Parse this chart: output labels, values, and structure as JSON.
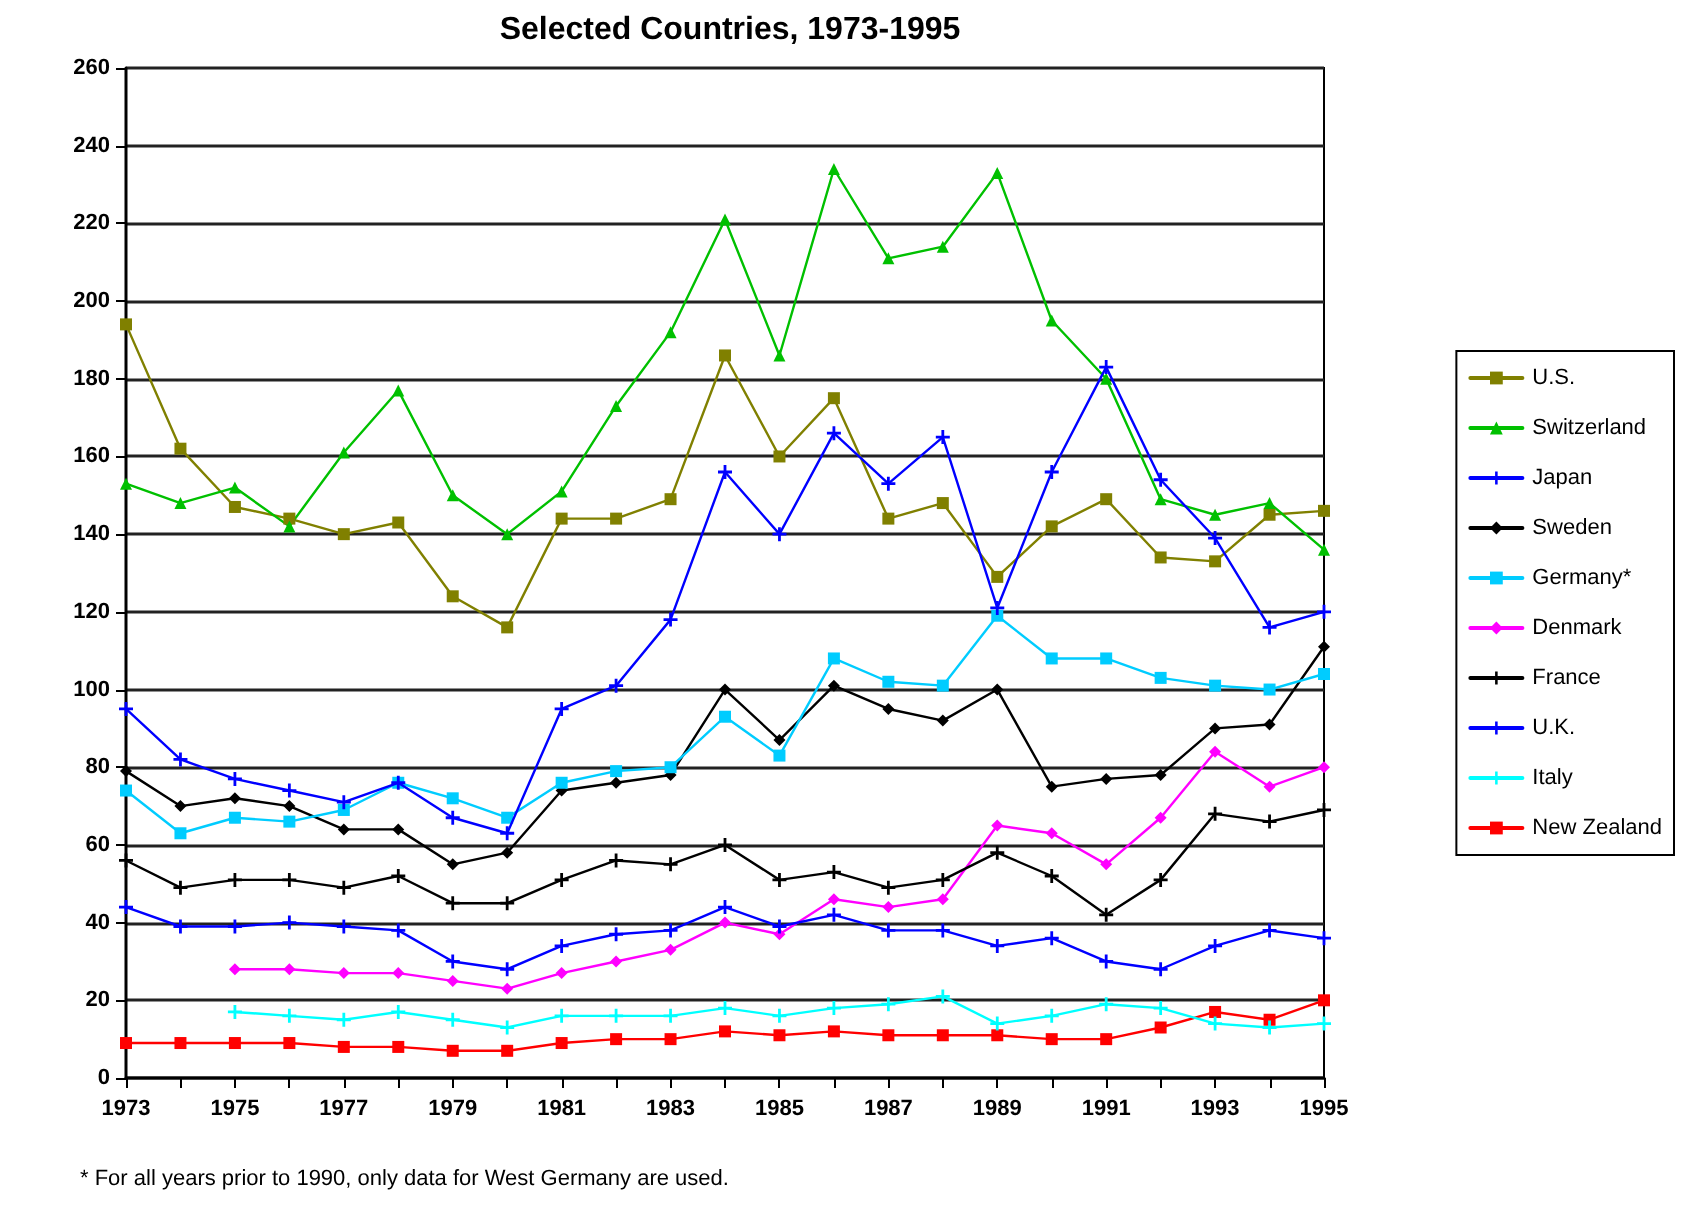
{
  "chart_data": {
    "type": "line",
    "title": "Selected Countries, 1973-1995",
    "categories": [
      "1973",
      null,
      "1975",
      null,
      "1977",
      null,
      "1979",
      null,
      "1981",
      null,
      "1983",
      null,
      "1985",
      null,
      "1987",
      null,
      "1989",
      null,
      "1991",
      null,
      "1993",
      null,
      "1995"
    ],
    "series": [
      {
        "name": "U.S.",
        "color": "#808000",
        "marker": "square",
        "values": [
          194,
          162,
          147,
          144,
          140,
          143,
          124,
          116,
          144,
          144,
          149,
          186,
          160,
          175,
          144,
          148,
          129,
          142,
          149,
          134,
          133,
          145,
          146
        ]
      },
      {
        "name": "Switzerland",
        "color": "#00c000",
        "marker": "triangle",
        "values": [
          153,
          148,
          152,
          142,
          161,
          177,
          150,
          140,
          151,
          173,
          192,
          221,
          186,
          234,
          211,
          214,
          233,
          195,
          180,
          149,
          145,
          148,
          136
        ]
      },
      {
        "name": "Japan",
        "color": "#0000ff",
        "marker": "cross",
        "values": [
          95,
          82,
          77,
          74,
          71,
          76,
          67,
          63,
          95,
          101,
          118,
          156,
          140,
          166,
          153,
          165,
          121,
          156,
          183,
          154,
          139,
          116,
          120
        ]
      },
      {
        "name": "Sweden",
        "color": "#000000",
        "marker": "diamond",
        "values": [
          79,
          70,
          72,
          70,
          64,
          64,
          55,
          58,
          74,
          76,
          78,
          100,
          87,
          101,
          95,
          92,
          100,
          75,
          77,
          78,
          90,
          91,
          111
        ]
      },
      {
        "name": "Germany*",
        "color": "#00ccff",
        "marker": "square",
        "values": [
          74,
          63,
          67,
          66,
          69,
          76,
          72,
          67,
          76,
          79,
          80,
          93,
          83,
          108,
          102,
          101,
          119,
          108,
          108,
          103,
          101,
          100,
          104
        ]
      },
      {
        "name": "Denmark",
        "color": "#ff00ff",
        "marker": "diamond",
        "values": [
          null,
          null,
          28,
          28,
          27,
          27,
          25,
          23,
          27,
          30,
          33,
          40,
          37,
          46,
          44,
          46,
          65,
          63,
          55,
          67,
          84,
          75,
          80
        ]
      },
      {
        "name": "France",
        "color": "#000000",
        "marker": "cross",
        "values": [
          56,
          49,
          51,
          51,
          49,
          52,
          45,
          45,
          51,
          56,
          55,
          60,
          51,
          53,
          49,
          51,
          58,
          52,
          42,
          51,
          68,
          66,
          69
        ]
      },
      {
        "name": "U.K.",
        "color": "#0000ff",
        "marker": "cross",
        "values": [
          44,
          39,
          39,
          40,
          39,
          38,
          30,
          28,
          34,
          37,
          38,
          44,
          39,
          42,
          38,
          38,
          34,
          36,
          30,
          28,
          34,
          38,
          36
        ]
      },
      {
        "name": "Italy",
        "color": "#00ffff",
        "marker": "cross",
        "values": [
          null,
          null,
          17,
          16,
          15,
          17,
          15,
          13,
          16,
          16,
          16,
          18,
          16,
          18,
          19,
          21,
          14,
          16,
          19,
          18,
          14,
          13,
          14
        ]
      },
      {
        "name": "New Zealand",
        "color": "#ff0000",
        "marker": "square",
        "values": [
          9,
          9,
          9,
          9,
          8,
          8,
          7,
          7,
          9,
          10,
          10,
          12,
          11,
          12,
          11,
          11,
          11,
          10,
          10,
          13,
          17,
          15,
          20
        ]
      }
    ],
    "ylim": [
      0,
      260
    ],
    "yticks": [
      0,
      20,
      40,
      60,
      80,
      100,
      120,
      140,
      160,
      180,
      200,
      220,
      240,
      260
    ],
    "grid": "y",
    "legend": "right",
    "line_style": "solid",
    "annotations": [
      "* For all years prior to 1990, only data for West Germany are used."
    ]
  }
}
